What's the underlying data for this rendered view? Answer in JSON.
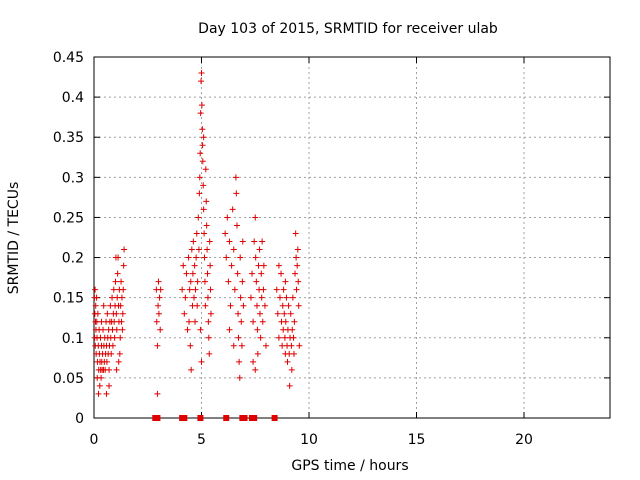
{
  "chart_data": {
    "type": "scatter",
    "title": "Day 103 of 2015, SRMTID for receiver ulab",
    "xlabel": "GPS time / hours",
    "ylabel": "SRMTID / TECUs",
    "xlim": [
      0,
      24
    ],
    "ylim": [
      0,
      0.45
    ],
    "x_ticks": [
      "0",
      "5",
      "10",
      "15",
      "20"
    ],
    "y_ticks": [
      "0",
      "0.05",
      "0.1",
      "0.15",
      "0.2",
      "0.25",
      "0.3",
      "0.35",
      "0.4",
      "0.45"
    ],
    "grid": true,
    "legend": "none",
    "marker": "+",
    "marker_color": "#e00000",
    "points": [
      [
        0.02,
        0.15
      ],
      [
        0.03,
        0.1
      ],
      [
        0.04,
        0.13
      ],
      [
        0.05,
        0.16
      ],
      [
        0.06,
        0.09
      ],
      [
        0.07,
        0.12
      ],
      [
        0.08,
        0.14
      ],
      [
        0.09,
        0.11
      ],
      [
        0.1,
        0.08
      ],
      [
        0.12,
        0.15
      ],
      [
        0.13,
        0.12
      ],
      [
        0.14,
        0.1
      ],
      [
        0.15,
        0.05
      ],
      [
        0.16,
        0.07
      ],
      [
        0.18,
        0.13
      ],
      [
        0.2,
        0.09
      ],
      [
        0.21,
        0.03
      ],
      [
        0.22,
        0.06
      ],
      [
        0.24,
        0.11
      ],
      [
        0.25,
        0.08
      ],
      [
        0.27,
        0.04
      ],
      [
        0.28,
        0.07
      ],
      [
        0.3,
        0.1
      ],
      [
        0.31,
        0.06
      ],
      [
        0.33,
        0.05
      ],
      [
        0.35,
        0.09
      ],
      [
        0.36,
        0.07
      ],
      [
        0.38,
        0.06
      ],
      [
        0.4,
        0.08
      ],
      [
        0.42,
        0.11
      ],
      [
        0.44,
        0.06
      ],
      [
        0.46,
        0.09
      ],
      [
        0.48,
        0.07
      ],
      [
        0.5,
        0.1
      ],
      [
        0.52,
        0.06
      ],
      [
        0.54,
        0.08
      ],
      [
        0.56,
        0.12
      ],
      [
        0.58,
        0.09
      ],
      [
        0.6,
        0.07
      ],
      [
        0.62,
        0.13
      ],
      [
        0.64,
        0.1
      ],
      [
        0.66,
        0.08
      ],
      [
        0.68,
        0.11
      ],
      [
        0.7,
        0.06
      ],
      [
        0.72,
        0.09
      ],
      [
        0.74,
        0.12
      ],
      [
        0.76,
        0.14
      ],
      [
        0.78,
        0.1
      ],
      [
        0.8,
        0.08
      ],
      [
        0.82,
        0.12
      ],
      [
        0.84,
        0.15
      ],
      [
        0.86,
        0.11
      ],
      [
        0.88,
        0.09
      ],
      [
        0.9,
        0.13
      ],
      [
        0.92,
        0.16
      ],
      [
        0.94,
        0.12
      ],
      [
        0.96,
        0.1
      ],
      [
        0.98,
        0.14
      ],
      [
        1.0,
        0.17
      ],
      [
        1.02,
        0.2
      ],
      [
        1.04,
        0.13
      ],
      [
        1.06,
        0.11
      ],
      [
        1.08,
        0.15
      ],
      [
        1.1,
        0.18
      ],
      [
        1.12,
        0.2
      ],
      [
        1.14,
        0.14
      ],
      [
        1.16,
        0.12
      ],
      [
        1.18,
        0.16
      ],
      [
        1.2,
        0.08
      ],
      [
        1.22,
        0.1
      ],
      [
        1.24,
        0.14
      ],
      [
        1.26,
        0.17
      ],
      [
        1.28,
        0.12
      ],
      [
        1.3,
        0.15
      ],
      [
        1.32,
        0.11
      ],
      [
        1.34,
        0.13
      ],
      [
        1.36,
        0.16
      ],
      [
        1.38,
        0.19
      ],
      [
        1.4,
        0.21
      ],
      [
        0.58,
        0.03
      ],
      [
        0.45,
        0.14
      ],
      [
        0.35,
        0.12
      ],
      [
        0.7,
        0.04
      ],
      [
        1.05,
        0.06
      ],
      [
        1.15,
        0.07
      ],
      [
        2.9,
        0.16
      ],
      [
        2.92,
        0.12
      ],
      [
        2.95,
        0.09
      ],
      [
        2.98,
        0.14
      ],
      [
        3.0,
        0.17
      ],
      [
        3.02,
        0.13
      ],
      [
        3.05,
        0.15
      ],
      [
        3.08,
        0.11
      ],
      [
        3.1,
        0.16
      ],
      [
        2.95,
        0.03
      ],
      [
        4.1,
        0.16
      ],
      [
        4.15,
        0.19
      ],
      [
        4.2,
        0.13
      ],
      [
        4.25,
        0.15
      ],
      [
        4.3,
        0.18
      ],
      [
        4.35,
        0.11
      ],
      [
        4.4,
        0.2
      ],
      [
        4.42,
        0.12
      ],
      [
        4.45,
        0.16
      ],
      [
        4.48,
        0.09
      ],
      [
        4.5,
        0.17
      ],
      [
        4.52,
        0.06
      ],
      [
        4.55,
        0.21
      ],
      [
        4.58,
        0.14
      ],
      [
        4.6,
        0.18
      ],
      [
        4.62,
        0.22
      ],
      [
        4.65,
        0.15
      ],
      [
        4.68,
        0.19
      ],
      [
        4.7,
        0.12
      ],
      [
        4.72,
        0.16
      ],
      [
        4.75,
        0.2
      ],
      [
        4.78,
        0.23
      ],
      [
        4.8,
        0.14
      ],
      [
        4.82,
        0.17
      ],
      [
        4.85,
        0.25
      ],
      [
        4.88,
        0.21
      ],
      [
        4.9,
        0.28
      ],
      [
        4.92,
        0.3
      ],
      [
        4.94,
        0.33
      ],
      [
        4.96,
        0.38
      ],
      [
        4.98,
        0.42
      ],
      [
        5.0,
        0.43
      ],
      [
        5.02,
        0.39
      ],
      [
        5.04,
        0.36
      ],
      [
        5.06,
        0.32
      ],
      [
        5.08,
        0.29
      ],
      [
        5.1,
        0.26
      ],
      [
        5.12,
        0.23
      ],
      [
        5.14,
        0.2
      ],
      [
        5.16,
        0.17
      ],
      [
        5.18,
        0.14
      ],
      [
        5.2,
        0.31
      ],
      [
        5.22,
        0.27
      ],
      [
        5.24,
        0.24
      ],
      [
        5.26,
        0.21
      ],
      [
        5.28,
        0.18
      ],
      [
        5.3,
        0.15
      ],
      [
        5.32,
        0.12
      ],
      [
        5.34,
        0.1
      ],
      [
        5.36,
        0.08
      ],
      [
        5.38,
        0.22
      ],
      [
        5.4,
        0.19
      ],
      [
        5.42,
        0.16
      ],
      [
        5.44,
        0.13
      ],
      [
        4.95,
        0.11
      ],
      [
        5.0,
        0.07
      ],
      [
        5.1,
        0.35
      ],
      [
        5.05,
        0.34
      ],
      [
        6.1,
        0.23
      ],
      [
        6.15,
        0.2
      ],
      [
        6.2,
        0.25
      ],
      [
        6.25,
        0.17
      ],
      [
        6.3,
        0.22
      ],
      [
        6.35,
        0.14
      ],
      [
        6.4,
        0.19
      ],
      [
        6.45,
        0.26
      ],
      [
        6.5,
        0.21
      ],
      [
        6.55,
        0.16
      ],
      [
        6.6,
        0.3
      ],
      [
        6.62,
        0.28
      ],
      [
        6.65,
        0.24
      ],
      [
        6.68,
        0.18
      ],
      [
        6.7,
        0.13
      ],
      [
        6.72,
        0.1
      ],
      [
        6.75,
        0.07
      ],
      [
        6.78,
        0.05
      ],
      [
        6.8,
        0.2
      ],
      [
        6.82,
        0.15
      ],
      [
        6.85,
        0.12
      ],
      [
        6.88,
        0.09
      ],
      [
        6.9,
        0.17
      ],
      [
        6.92,
        0.22
      ],
      [
        6.95,
        0.14
      ],
      [
        6.3,
        0.11
      ],
      [
        6.5,
        0.09
      ],
      [
        7.3,
        0.15
      ],
      [
        7.35,
        0.18
      ],
      [
        7.4,
        0.12
      ],
      [
        7.45,
        0.22
      ],
      [
        7.5,
        0.25
      ],
      [
        7.52,
        0.2
      ],
      [
        7.55,
        0.17
      ],
      [
        7.58,
        0.14
      ],
      [
        7.6,
        0.11
      ],
      [
        7.62,
        0.08
      ],
      [
        7.65,
        0.19
      ],
      [
        7.68,
        0.16
      ],
      [
        7.7,
        0.21
      ],
      [
        7.72,
        0.13
      ],
      [
        7.75,
        0.1
      ],
      [
        7.78,
        0.18
      ],
      [
        7.8,
        0.15
      ],
      [
        7.82,
        0.22
      ],
      [
        7.85,
        0.12
      ],
      [
        7.88,
        0.16
      ],
      [
        7.9,
        0.19
      ],
      [
        7.95,
        0.14
      ],
      [
        8.0,
        0.09
      ],
      [
        7.4,
        0.07
      ],
      [
        7.5,
        0.06
      ],
      [
        8.5,
        0.16
      ],
      [
        8.55,
        0.13
      ],
      [
        8.6,
        0.1
      ],
      [
        8.65,
        0.15
      ],
      [
        8.7,
        0.18
      ],
      [
        8.72,
        0.12
      ],
      [
        8.75,
        0.09
      ],
      [
        8.78,
        0.14
      ],
      [
        8.8,
        0.11
      ],
      [
        8.82,
        0.16
      ],
      [
        8.85,
        0.13
      ],
      [
        8.88,
        0.1
      ],
      [
        8.9,
        0.08
      ],
      [
        8.92,
        0.12
      ],
      [
        8.95,
        0.15
      ],
      [
        8.98,
        0.09
      ],
      [
        9.0,
        0.07
      ],
      [
        9.02,
        0.11
      ],
      [
        9.05,
        0.14
      ],
      [
        9.08,
        0.08
      ],
      [
        9.1,
        0.04
      ],
      [
        9.12,
        0.1
      ],
      [
        9.15,
        0.13
      ],
      [
        9.18,
        0.09
      ],
      [
        9.2,
        0.06
      ],
      [
        9.22,
        0.11
      ],
      [
        9.25,
        0.15
      ],
      [
        9.28,
        0.1
      ],
      [
        9.3,
        0.08
      ],
      [
        9.32,
        0.12
      ],
      [
        9.35,
        0.18
      ],
      [
        9.38,
        0.23
      ],
      [
        9.4,
        0.2
      ],
      [
        9.42,
        0.16
      ],
      [
        9.45,
        0.19
      ],
      [
        9.48,
        0.21
      ],
      [
        9.5,
        0.17
      ],
      [
        9.52,
        0.14
      ],
      [
        9.55,
        0.09
      ],
      [
        8.6,
        0.19
      ],
      [
        8.9,
        0.17
      ]
    ],
    "baseline_markers_x": [
      2.85,
      2.95,
      4.1,
      4.2,
      4.95,
      6.15,
      6.9,
      7.0,
      7.35,
      7.45,
      8.4
    ]
  }
}
